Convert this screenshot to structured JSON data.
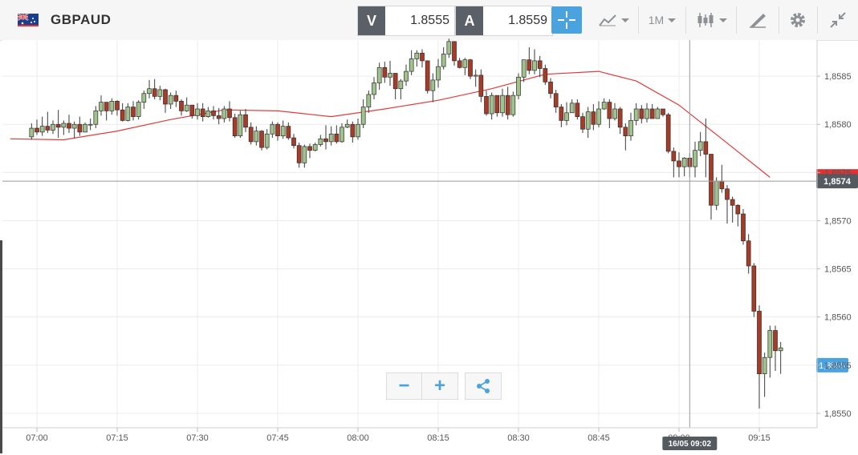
{
  "header": {
    "symbol": "GBPAUD",
    "sell_label": "V",
    "sell_price": "1.8555",
    "buy_label": "A",
    "buy_price": "1.8559",
    "timeframe": "1M",
    "icons": [
      "crosshair-icon",
      "chart-type-icon",
      "timeframe-selector",
      "candlestick-icon",
      "drawing-tool-icon",
      "gear-icon",
      "collapse-icon"
    ]
  },
  "zoom": {
    "out": "−",
    "in": "+"
  },
  "crosshair_label": "16/05 09:02",
  "colors": {
    "up": "#9fc38a",
    "down": "#a83b25",
    "ma": "#e23b3b",
    "last_price_bg": "#4aa3df",
    "current_bg": "#555a61",
    "flag_bg": "#e53030"
  },
  "chart_data": {
    "type": "candlestick",
    "symbol": "GBPAUD",
    "interval": "1 minute",
    "x_ticks": [
      "07:00",
      "07:15",
      "07:30",
      "07:45",
      "08:00",
      "08:15",
      "08:30",
      "08:45",
      "09:00",
      "09:15"
    ],
    "y_ticks": [
      "1,8550",
      "1,8555",
      "1,8560",
      "1,8565",
      "1,8570",
      "1,8575",
      "1,8580",
      "1,8585"
    ],
    "ylim": [
      1.85485,
      1.85895
    ],
    "last_price": "1,8555",
    "current_price": "1,8574",
    "crosshair_price": 1.85741,
    "moving_average": {
      "color": "#e23b3b",
      "points": [
        [
          "06:55",
          1.85785
        ],
        [
          "07:05",
          1.85784
        ],
        [
          "07:15",
          1.85793
        ],
        [
          "07:25",
          1.85805
        ],
        [
          "07:35",
          1.85815
        ],
        [
          "07:45",
          1.85814
        ],
        [
          "07:55",
          1.85808
        ],
        [
          "08:05",
          1.85816
        ],
        [
          "08:15",
          1.85825
        ],
        [
          "08:25",
          1.85837
        ],
        [
          "08:35",
          1.85852
        ],
        [
          "08:45",
          1.85855
        ],
        [
          "08:52",
          1.85845
        ],
        [
          "09:00",
          1.8582
        ],
        [
          "09:08",
          1.85785
        ],
        [
          "09:17",
          1.85745
        ]
      ]
    },
    "candles": [
      [
        "06:59",
        1.85787,
        1.85796,
        1.85801,
        1.85784
      ],
      [
        "07:00",
        1.85796,
        1.85792,
        1.85805,
        1.85789
      ],
      [
        "07:01",
        1.85792,
        1.85798,
        1.85808,
        1.85788
      ],
      [
        "07:02",
        1.85798,
        1.85794,
        1.85813,
        1.85791
      ],
      [
        "07:03",
        1.85794,
        1.858,
        1.85804,
        1.8579
      ],
      [
        "07:04",
        1.858,
        1.85797,
        1.85815,
        1.85786
      ],
      [
        "07:05",
        1.85797,
        1.85801,
        1.85804,
        1.85789
      ],
      [
        "07:06",
        1.85801,
        1.85796,
        1.8581,
        1.85791
      ],
      [
        "07:07",
        1.85796,
        1.858,
        1.85803,
        1.85786
      ],
      [
        "07:08",
        1.858,
        1.85792,
        1.85808,
        1.85788
      ],
      [
        "07:09",
        1.85792,
        1.858,
        1.85802,
        1.85792
      ],
      [
        "07:10",
        1.858,
        1.858,
        1.85806,
        1.85794
      ],
      [
        "07:11",
        1.858,
        1.85814,
        1.85819,
        1.85796
      ],
      [
        "07:12",
        1.85814,
        1.85823,
        1.8583,
        1.85809
      ],
      [
        "07:13",
        1.85823,
        1.85814,
        1.85823,
        1.85804
      ],
      [
        "07:14",
        1.85814,
        1.85824,
        1.85827,
        1.8581
      ],
      [
        "07:15",
        1.85824,
        1.85815,
        1.85825,
        1.85809
      ],
      [
        "07:16",
        1.85815,
        1.85804,
        1.85822,
        1.85803
      ],
      [
        "07:17",
        1.85804,
        1.85818,
        1.85822,
        1.85803
      ],
      [
        "07:18",
        1.85818,
        1.85808,
        1.85824,
        1.85804
      ],
      [
        "07:19",
        1.85808,
        1.85823,
        1.85825,
        1.85805
      ],
      [
        "07:20",
        1.85823,
        1.85832,
        1.85835,
        1.85816
      ],
      [
        "07:21",
        1.85832,
        1.85837,
        1.85846,
        1.85827
      ],
      [
        "07:22",
        1.85837,
        1.85829,
        1.85847,
        1.85826
      ],
      [
        "07:23",
        1.85829,
        1.85836,
        1.8584,
        1.85825
      ],
      [
        "07:24",
        1.85836,
        1.85821,
        1.85837,
        1.85812
      ],
      [
        "07:25",
        1.85821,
        1.8583,
        1.85833,
        1.85816
      ],
      [
        "07:26",
        1.8583,
        1.85824,
        1.85835,
        1.85818
      ],
      [
        "07:27",
        1.85824,
        1.85814,
        1.85826,
        1.85809
      ],
      [
        "07:28",
        1.85814,
        1.8582,
        1.85828,
        1.85813
      ],
      [
        "07:29",
        1.8582,
        1.85809,
        1.8582,
        1.85806
      ],
      [
        "07:30",
        1.85809,
        1.85816,
        1.85822,
        1.85805
      ],
      [
        "07:31",
        1.85816,
        1.85808,
        1.85822,
        1.85803
      ],
      [
        "07:32",
        1.85808,
        1.85814,
        1.85818,
        1.85807
      ],
      [
        "07:33",
        1.85814,
        1.85809,
        1.85819,
        1.85805
      ],
      [
        "07:34",
        1.85809,
        1.85806,
        1.85817,
        1.858
      ],
      [
        "07:35",
        1.85806,
        1.85816,
        1.85819,
        1.85802
      ],
      [
        "07:36",
        1.85816,
        1.85807,
        1.85824,
        1.85803
      ],
      [
        "07:37",
        1.85807,
        1.85788,
        1.85811,
        1.85786
      ],
      [
        "07:38",
        1.85788,
        1.8581,
        1.85814,
        1.85786
      ],
      [
        "07:39",
        1.8581,
        1.85797,
        1.85816,
        1.85792
      ],
      [
        "07:40",
        1.85797,
        1.85782,
        1.85802,
        1.85779
      ],
      [
        "07:41",
        1.85782,
        1.85793,
        1.85798,
        1.85778
      ],
      [
        "07:42",
        1.85793,
        1.85776,
        1.85794,
        1.85773
      ],
      [
        "07:43",
        1.85776,
        1.8579,
        1.85795,
        1.85774
      ],
      [
        "07:44",
        1.8579,
        1.858,
        1.85803,
        1.85786
      ],
      [
        "07:45",
        1.858,
        1.85788,
        1.85802,
        1.85783
      ],
      [
        "07:46",
        1.85788,
        1.85798,
        1.85804,
        1.85785
      ],
      [
        "07:47",
        1.85798,
        1.85786,
        1.85802,
        1.85784
      ],
      [
        "07:48",
        1.85786,
        1.85778,
        1.8579,
        1.85775
      ],
      [
        "07:49",
        1.85778,
        1.8576,
        1.85781,
        1.85755
      ],
      [
        "07:50",
        1.8576,
        1.85777,
        1.85779,
        1.85755
      ],
      [
        "07:51",
        1.85777,
        1.85773,
        1.8578,
        1.85765
      ],
      [
        "07:52",
        1.85773,
        1.85779,
        1.85781,
        1.85772
      ],
      [
        "07:53",
        1.85779,
        1.85785,
        1.85789,
        1.85777
      ],
      [
        "07:54",
        1.85785,
        1.85782,
        1.85799,
        1.85774
      ],
      [
        "07:55",
        1.85782,
        1.8579,
        1.85798,
        1.85778
      ],
      [
        "07:56",
        1.8579,
        1.85782,
        1.85799,
        1.8578
      ],
      [
        "07:57",
        1.85782,
        1.85797,
        1.85801,
        1.85781
      ],
      [
        "07:58",
        1.85797,
        1.858,
        1.85805,
        1.85796
      ],
      [
        "07:59",
        1.858,
        1.85787,
        1.85803,
        1.85781
      ],
      [
        "08:00",
        1.85787,
        1.858,
        1.85806,
        1.85784
      ],
      [
        "08:01",
        1.858,
        1.85818,
        1.85826,
        1.85796
      ],
      [
        "08:02",
        1.85818,
        1.85831,
        1.85835,
        1.85812
      ],
      [
        "08:03",
        1.85831,
        1.85843,
        1.85849,
        1.85826
      ],
      [
        "08:04",
        1.85843,
        1.85859,
        1.85864,
        1.85836
      ],
      [
        "08:05",
        1.85859,
        1.85849,
        1.85865,
        1.85843
      ],
      [
        "08:06",
        1.85849,
        1.85853,
        1.85866,
        1.8584
      ],
      [
        "08:07",
        1.85853,
        1.85837,
        1.85853,
        1.85826
      ],
      [
        "08:08",
        1.85837,
        1.85845,
        1.85847,
        1.85826
      ],
      [
        "08:09",
        1.85845,
        1.85855,
        1.85862,
        1.8584
      ],
      [
        "08:10",
        1.85855,
        1.85868,
        1.85877,
        1.85851
      ],
      [
        "08:11",
        1.85868,
        1.85874,
        1.85877,
        1.8586
      ],
      [
        "08:12",
        1.85874,
        1.85866,
        1.85878,
        1.85859
      ],
      [
        "08:13",
        1.85866,
        1.85835,
        1.85866,
        1.85832
      ],
      [
        "08:14",
        1.85835,
        1.85846,
        1.85853,
        1.85823
      ],
      [
        "08:15",
        1.85846,
        1.8586,
        1.85868,
        1.85838
      ],
      [
        "08:16",
        1.8586,
        1.85873,
        1.8588,
        1.85857
      ],
      [
        "08:17",
        1.85873,
        1.85886,
        1.85889,
        1.85869
      ],
      [
        "08:18",
        1.85886,
        1.85866,
        1.85886,
        1.85861
      ],
      [
        "08:19",
        1.85866,
        1.85859,
        1.85869,
        1.85858
      ],
      [
        "08:20",
        1.85859,
        1.85867,
        1.85869,
        1.85851
      ],
      [
        "08:21",
        1.85867,
        1.8585,
        1.85868,
        1.85847
      ],
      [
        "08:22",
        1.8585,
        1.85851,
        1.85857,
        1.85839
      ],
      [
        "08:23",
        1.85851,
        1.85829,
        1.85857,
        1.85823
      ],
      [
        "08:24",
        1.85829,
        1.85811,
        1.85835,
        1.85809
      ],
      [
        "08:25",
        1.85811,
        1.8583,
        1.85833,
        1.85805
      ],
      [
        "08:26",
        1.8583,
        1.85812,
        1.8583,
        1.85808
      ],
      [
        "08:27",
        1.85812,
        1.8583,
        1.85837,
        1.85808
      ],
      [
        "08:28",
        1.8583,
        1.8581,
        1.85839,
        1.85805
      ],
      [
        "08:29",
        1.8581,
        1.8583,
        1.85834,
        1.85808
      ],
      [
        "08:30",
        1.8583,
        1.85849,
        1.85853,
        1.85826
      ],
      [
        "08:31",
        1.85849,
        1.85867,
        1.85867,
        1.85844
      ],
      [
        "08:32",
        1.85867,
        1.85856,
        1.8588,
        1.85852
      ],
      [
        "08:33",
        1.85856,
        1.85866,
        1.85878,
        1.85852
      ],
      [
        "08:34",
        1.85866,
        1.85858,
        1.85871,
        1.85849
      ],
      [
        "08:35",
        1.85858,
        1.85844,
        1.85862,
        1.85841
      ],
      [
        "08:36",
        1.85844,
        1.85832,
        1.85848,
        1.85827
      ],
      [
        "08:37",
        1.85832,
        1.85818,
        1.85836,
        1.85812
      ],
      [
        "08:38",
        1.85818,
        1.85804,
        1.85821,
        1.85797
      ],
      [
        "08:39",
        1.85804,
        1.85812,
        1.85823,
        1.85799
      ],
      [
        "08:40",
        1.85812,
        1.85822,
        1.85826,
        1.85812
      ],
      [
        "08:41",
        1.85822,
        1.85808,
        1.85826,
        1.85805
      ],
      [
        "08:42",
        1.85808,
        1.85795,
        1.85812,
        1.85791
      ],
      [
        "08:43",
        1.85795,
        1.85813,
        1.85818,
        1.85786
      ],
      [
        "08:44",
        1.85813,
        1.858,
        1.85821,
        1.85794
      ],
      [
        "08:45",
        1.858,
        1.85816,
        1.85824,
        1.85797
      ],
      [
        "08:46",
        1.85816,
        1.85823,
        1.85827,
        1.85815
      ],
      [
        "08:47",
        1.85823,
        1.85806,
        1.85826,
        1.85796
      ],
      [
        "08:48",
        1.85806,
        1.85816,
        1.85822,
        1.85804
      ],
      [
        "08:49",
        1.85816,
        1.85797,
        1.85818,
        1.8579
      ],
      [
        "08:50",
        1.85797,
        1.85788,
        1.85801,
        1.85773
      ],
      [
        "08:51",
        1.85788,
        1.85804,
        1.85812,
        1.85783
      ],
      [
        "08:52",
        1.85804,
        1.85816,
        1.85822,
        1.85799
      ],
      [
        "08:53",
        1.85816,
        1.85806,
        1.8582,
        1.85801
      ],
      [
        "08:54",
        1.85806,
        1.85816,
        1.85822,
        1.85802
      ],
      [
        "08:55",
        1.85816,
        1.85806,
        1.85821,
        1.85806
      ],
      [
        "08:56",
        1.85806,
        1.85816,
        1.85818,
        1.85812
      ],
      [
        "08:57",
        1.85816,
        1.8581,
        1.85816,
        1.85808
      ],
      [
        "08:58",
        1.8581,
        1.85772,
        1.85812,
        1.8577
      ],
      [
        "08:59",
        1.85772,
        1.85762,
        1.85776,
        1.85745
      ],
      [
        "09:00",
        1.85762,
        1.85756,
        1.85771,
        1.85745
      ],
      [
        "09:01",
        1.85756,
        1.85765,
        1.85766,
        1.85746
      ],
      [
        "09:02",
        1.85765,
        1.85756,
        1.8577,
        1.85745
      ],
      [
        "09:03",
        1.85756,
        1.85773,
        1.85782,
        1.85745
      ],
      [
        "09:04",
        1.85773,
        1.85782,
        1.85792,
        1.85767
      ],
      [
        "09:05",
        1.85782,
        1.85769,
        1.85806,
        1.85745
      ],
      [
        "09:06",
        1.85769,
        1.85716,
        1.85769,
        1.85701
      ],
      [
        "09:07",
        1.85716,
        1.85741,
        1.85745,
        1.85711
      ],
      [
        "09:08",
        1.85741,
        1.85733,
        1.85758,
        1.85729
      ],
      [
        "09:09",
        1.85733,
        1.85722,
        1.85737,
        1.85697
      ],
      [
        "09:10",
        1.85722,
        1.85716,
        1.85725,
        1.85698
      ],
      [
        "09:11",
        1.85716,
        1.85707,
        1.85717,
        1.85694
      ],
      [
        "09:12",
        1.85707,
        1.85679,
        1.85712,
        1.85675
      ],
      [
        "09:13",
        1.85679,
        1.85653,
        1.85686,
        1.85645
      ],
      [
        "09:14",
        1.85653,
        1.85606,
        1.85656,
        1.856
      ],
      [
        "09:15",
        1.85606,
        1.85541,
        1.85612,
        1.85505
      ],
      [
        "09:16",
        1.85541,
        1.85558,
        1.85563,
        1.85517
      ],
      [
        "09:17",
        1.85558,
        1.85586,
        1.85591,
        1.85537
      ],
      [
        "09:18",
        1.85586,
        1.85565,
        1.85591,
        1.85544
      ],
      [
        "09:19",
        1.85565,
        1.85568,
        1.85574,
        1.85541
      ]
    ],
    "grid": true
  }
}
